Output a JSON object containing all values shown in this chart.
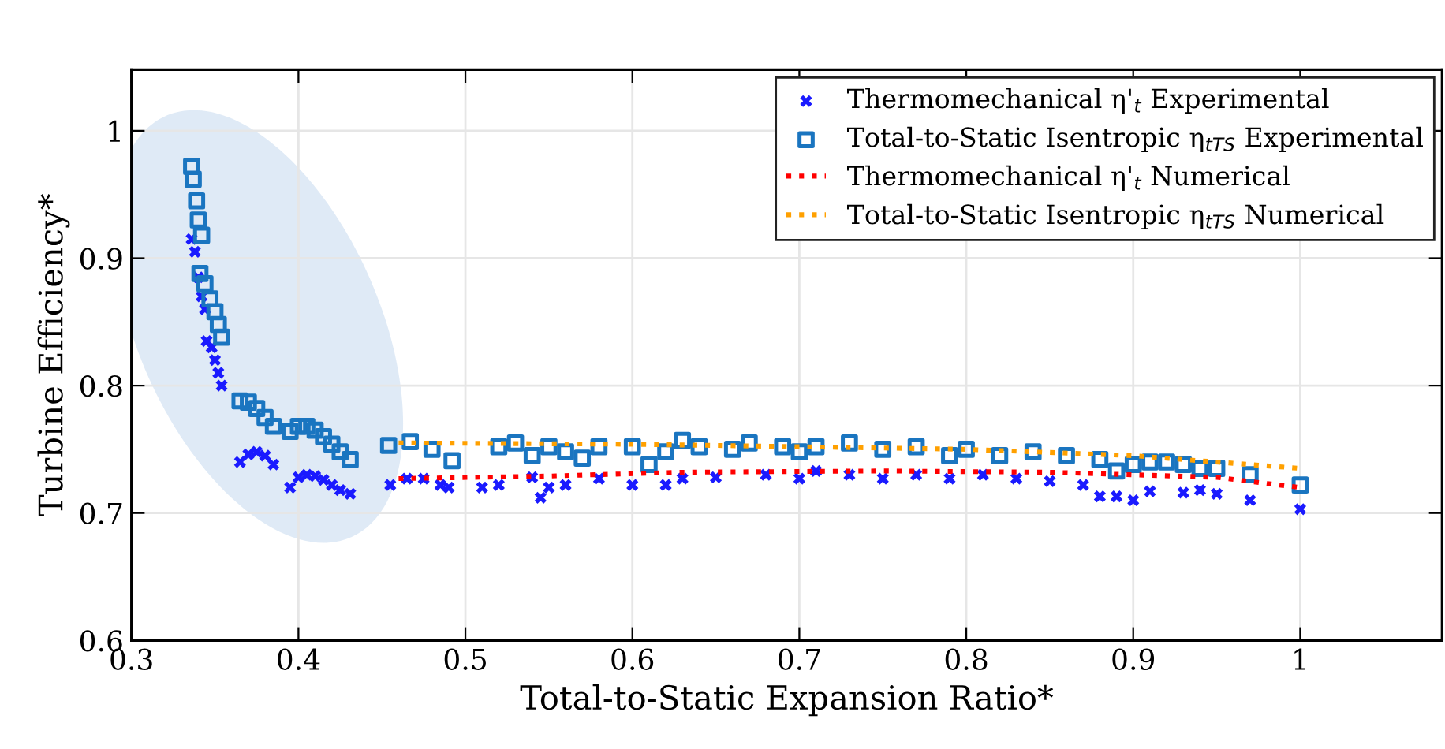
{
  "chart_data": {
    "type": "scatter",
    "xlabel": "Total-to-Static Expansion Ratio*",
    "ylabel": "Turbine Efficiency*",
    "xlim": [
      0.3,
      1.085
    ],
    "xticks": [
      0.3,
      0.4,
      0.5,
      0.6,
      0.7,
      0.8,
      0.9,
      {
        "value": 1.0,
        "label": "1"
      }
    ],
    "ylim": [
      0.6,
      1.048
    ],
    "yticks": [
      0.6,
      0.7,
      0.8,
      0.9,
      {
        "value": 1.0,
        "label": "1"
      }
    ],
    "grid": true,
    "legend": "top right",
    "series": [
      {
        "name": "Thermomechanical η'$_{t}$ Experimental",
        "marker": "cross",
        "color": "#1a1aff",
        "x": [
          0.336,
          0.338,
          0.34,
          0.342,
          0.344,
          0.345,
          0.348,
          0.35,
          0.352,
          0.354,
          0.365,
          0.37,
          0.375,
          0.38,
          0.385,
          0.395,
          0.4,
          0.405,
          0.41,
          0.415,
          0.42,
          0.425,
          0.431,
          0.455,
          0.465,
          0.475,
          0.485,
          0.49,
          0.51,
          0.52,
          0.54,
          0.545,
          0.55,
          0.56,
          0.58,
          0.6,
          0.62,
          0.63,
          0.65,
          0.68,
          0.7,
          0.71,
          0.73,
          0.75,
          0.77,
          0.79,
          0.81,
          0.83,
          0.85,
          0.87,
          0.88,
          0.89,
          0.9,
          0.91,
          0.93,
          0.94,
          0.95,
          0.97,
          1.0
        ],
        "values": [
          0.915,
          0.905,
          0.885,
          0.87,
          0.86,
          0.835,
          0.83,
          0.82,
          0.81,
          0.8,
          0.74,
          0.746,
          0.748,
          0.745,
          0.738,
          0.72,
          0.728,
          0.73,
          0.729,
          0.726,
          0.722,
          0.718,
          0.715,
          0.722,
          0.727,
          0.727,
          0.722,
          0.72,
          0.72,
          0.722,
          0.728,
          0.712,
          0.72,
          0.722,
          0.727,
          0.722,
          0.722,
          0.727,
          0.728,
          0.73,
          0.727,
          0.733,
          0.73,
          0.727,
          0.73,
          0.727,
          0.73,
          0.727,
          0.725,
          0.722,
          0.713,
          0.713,
          0.71,
          0.717,
          0.716,
          0.718,
          0.715,
          0.71,
          0.703
        ]
      },
      {
        "name": "Total-to-Static Isentropic η$_{tTS}$ Experimental",
        "marker": "square",
        "color": "#1a75c0",
        "x": [
          0.336,
          0.337,
          0.339,
          0.34,
          0.342,
          0.341,
          0.344,
          0.347,
          0.35,
          0.352,
          0.354,
          0.365,
          0.37,
          0.375,
          0.38,
          0.385,
          0.395,
          0.4,
          0.405,
          0.41,
          0.415,
          0.42,
          0.425,
          0.431,
          0.454,
          0.467,
          0.48,
          0.492,
          0.52,
          0.53,
          0.54,
          0.55,
          0.56,
          0.57,
          0.58,
          0.6,
          0.61,
          0.62,
          0.63,
          0.64,
          0.66,
          0.67,
          0.69,
          0.7,
          0.71,
          0.73,
          0.75,
          0.77,
          0.79,
          0.8,
          0.82,
          0.84,
          0.86,
          0.88,
          0.89,
          0.9,
          0.91,
          0.92,
          0.93,
          0.94,
          0.95,
          0.97,
          1.0
        ],
        "values": [
          0.972,
          0.962,
          0.945,
          0.93,
          0.918,
          0.888,
          0.88,
          0.868,
          0.858,
          0.848,
          0.838,
          0.788,
          0.787,
          0.782,
          0.775,
          0.768,
          0.764,
          0.768,
          0.768,
          0.765,
          0.76,
          0.754,
          0.748,
          0.742,
          0.753,
          0.756,
          0.75,
          0.741,
          0.752,
          0.755,
          0.745,
          0.752,
          0.748,
          0.743,
          0.752,
          0.752,
          0.738,
          0.748,
          0.757,
          0.752,
          0.75,
          0.755,
          0.752,
          0.748,
          0.752,
          0.755,
          0.75,
          0.752,
          0.745,
          0.75,
          0.745,
          0.748,
          0.745,
          0.742,
          0.733,
          0.738,
          0.74,
          0.74,
          0.738,
          0.735,
          0.735,
          0.73,
          0.722
        ]
      },
      {
        "name": "Thermomechanical η'$_{t}$ Numerical",
        "type": "line",
        "line_style": "dotted",
        "marker": "none",
        "color": "#ff0000",
        "x": [
          0.46,
          0.55,
          0.63,
          0.75,
          0.85,
          0.95,
          1.0
        ],
        "values": [
          0.727,
          0.729,
          0.732,
          0.733,
          0.732,
          0.728,
          0.72
        ]
      },
      {
        "name": "Total-to-Static Isentropic η$_{tTS}$ Numerical",
        "type": "line",
        "line_style": "dotted",
        "marker": "none",
        "color": "#ffa000",
        "x": [
          0.46,
          0.6,
          0.7,
          0.8,
          0.9,
          1.0
        ],
        "values": [
          0.755,
          0.754,
          0.752,
          0.75,
          0.745,
          0.735
        ]
      }
    ]
  }
}
